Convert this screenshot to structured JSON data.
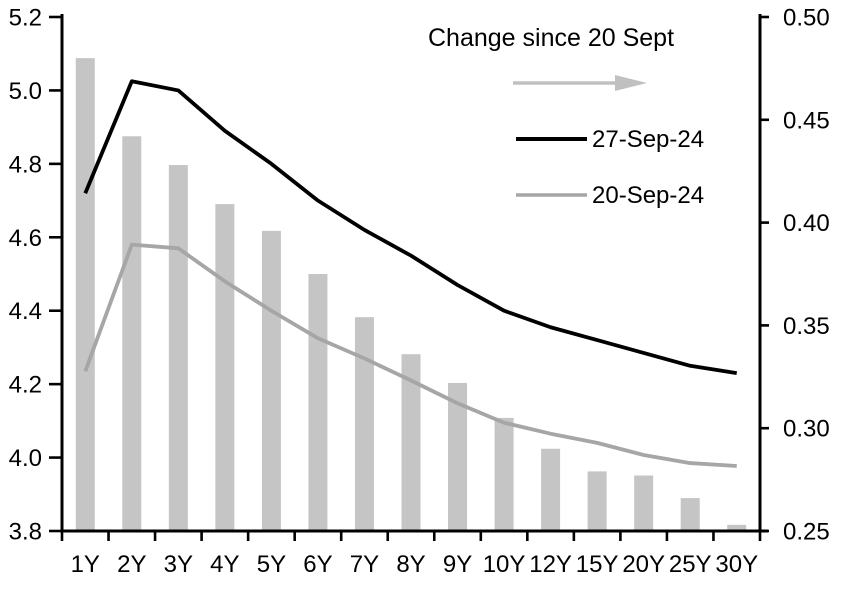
{
  "chart_data": {
    "type": "combo_bar_line",
    "title": "",
    "categories": [
      "1Y",
      "2Y",
      "3Y",
      "4Y",
      "5Y",
      "6Y",
      "7Y",
      "8Y",
      "9Y",
      "10Y",
      "12Y",
      "15Y",
      "20Y",
      "25Y",
      "30Y"
    ],
    "series": [
      {
        "name": "Change since 20 Sept",
        "type": "bar",
        "axis": "right",
        "color": "#c5c5c5",
        "values": [
          0.48,
          0.442,
          0.428,
          0.409,
          0.396,
          0.375,
          0.354,
          0.336,
          0.322,
          0.305,
          0.29,
          0.279,
          0.277,
          0.266,
          0.253
        ]
      },
      {
        "name": "27-Sep-24",
        "type": "line",
        "axis": "left",
        "color": "#000000",
        "values": [
          4.72,
          5.025,
          5.0,
          4.89,
          4.8,
          4.7,
          4.62,
          4.55,
          4.47,
          4.4,
          4.355,
          4.32,
          4.285,
          4.25,
          4.23
        ]
      },
      {
        "name": "20-Sep-24",
        "type": "line",
        "axis": "left",
        "color": "#a6a6a6",
        "values": [
          4.235,
          4.58,
          4.57,
          4.48,
          4.4,
          4.325,
          4.27,
          4.21,
          4.148,
          4.095,
          4.065,
          4.04,
          4.007,
          3.985,
          3.977
        ]
      }
    ],
    "left_axis": {
      "min": 3.8,
      "max": 5.2,
      "step": 0.2,
      "tick_labels": [
        "5.2",
        "5.0",
        "4.8",
        "4.6",
        "4.4",
        "4.2",
        "4.0",
        "3.8"
      ]
    },
    "right_axis": {
      "min": 0.25,
      "max": 0.5,
      "step": 0.05,
      "tick_labels": [
        "0.50",
        "0.45",
        "0.40",
        "0.35",
        "0.30",
        "0.25"
      ]
    },
    "legend": {
      "title": "Change since 20 Sept",
      "arrow_color": "#c0c0c0",
      "items": [
        "27-Sep-24",
        "20-Sep-24"
      ],
      "position": "top-right-inside"
    },
    "grid": false
  }
}
